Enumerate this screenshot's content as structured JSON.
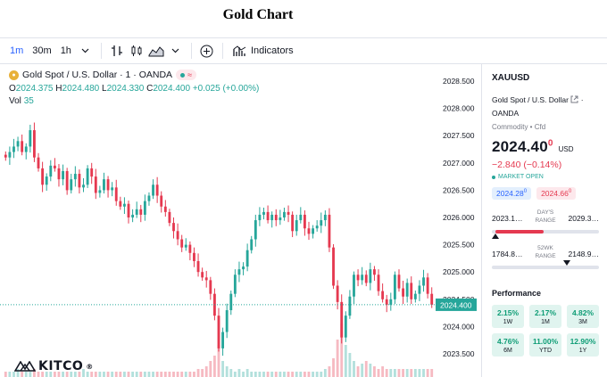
{
  "page": {
    "title": "Gold Chart"
  },
  "toolbar": {
    "intervals": [
      "1m",
      "30m",
      "1h"
    ],
    "active_interval": "1m",
    "indicators_label": "Indicators"
  },
  "legend": {
    "symbol": "Gold Spot / U.S. Dollar · 1 · OANDA",
    "open_label": "O",
    "open": "2024.375",
    "high_label": "H",
    "high": "2024.480",
    "low_label": "L",
    "low": "2024.330",
    "close_label": "C",
    "close": "2024.400",
    "change": "+0.025 (+0.00%)",
    "vol_label": "Vol",
    "vol": "35"
  },
  "brand": {
    "logo_text": "KITCO",
    "reg_mark": "®"
  },
  "chart_data": {
    "type": "candlestick",
    "title": "",
    "xlabel": "",
    "ylabel": "",
    "ylim": [
      2023.3,
      2028.7
    ],
    "y_ticks": [
      "2028.500",
      "2028.000",
      "2027.500",
      "2027.000",
      "2026.500",
      "2026.000",
      "2025.500",
      "2025.000",
      "2024.500",
      "2024.000",
      "2023.500"
    ],
    "last_price_label": "2024.400",
    "last_price": 2024.4,
    "colors": {
      "up": "#26a69a",
      "down": "#e53950",
      "price_line": "#26a69a"
    },
    "close": [
      2027.1,
      2027.2,
      2027.3,
      2027.4,
      2027.2,
      2027.3,
      2027.6,
      2027.1,
      2026.9,
      2026.6,
      2026.75,
      2026.95,
      2026.9,
      2026.7,
      2026.85,
      2026.5,
      2026.7,
      2026.8,
      2026.55,
      2026.6,
      2026.9,
      2026.75,
      2026.45,
      2026.5,
      2026.7,
      2026.5,
      2026.55,
      2026.3,
      2026.2,
      2026.25,
      2026.0,
      2026.05,
      2026.15,
      2026.05,
      2026.3,
      2026.4,
      2026.6,
      2026.4,
      2026.2,
      2026.1,
      2025.9,
      2025.75,
      2025.6,
      2025.45,
      2025.5,
      2025.35,
      2025.2,
      2025.0,
      2024.9,
      2024.85,
      2024.6,
      2024.2,
      2023.6,
      2023.9,
      2024.3,
      2024.6,
      2024.95,
      2025.05,
      2025.1,
      2025.4,
      2025.6,
      2025.95,
      2026.05,
      2026.1,
      2025.95,
      2026.05,
      2025.95,
      2026.0,
      2026.1,
      2026.05,
      2025.75,
      2025.95,
      2026.05,
      2025.8,
      2025.7,
      2025.8,
      2025.85,
      2025.95,
      2026.05,
      2025.45,
      2024.75,
      2024.45,
      2023.8,
      2024.2,
      2024.55,
      2024.95,
      2024.85,
      2024.95,
      2024.8,
      2025.05,
      2024.95,
      2024.65,
      2024.5,
      2024.4,
      2024.5,
      2024.95,
      2024.7,
      2024.55,
      2024.8,
      2024.5,
      2024.6,
      2024.75,
      2024.9,
      2024.6,
      2024.4
    ],
    "volume_note": "volume bars at bottom",
    "volume": [
      2,
      2,
      2,
      3,
      2,
      2,
      2,
      3,
      2,
      2,
      2,
      2,
      2,
      2,
      2,
      2,
      2,
      2,
      2,
      3,
      2,
      2,
      2,
      2,
      2,
      2,
      2,
      2,
      2,
      2,
      2,
      2,
      2,
      2,
      2,
      2,
      2,
      2,
      2,
      2,
      2,
      2,
      2,
      2,
      2,
      2,
      2,
      3,
      3,
      4,
      6,
      8,
      12,
      6,
      4,
      3,
      2,
      3,
      2,
      3,
      2,
      2,
      2,
      2,
      2,
      2,
      2,
      2,
      2,
      2,
      2,
      2,
      2,
      2,
      2,
      2,
      2,
      2,
      3,
      4,
      7,
      14,
      20,
      12,
      9,
      6,
      4,
      5,
      6,
      5,
      4,
      3,
      4,
      3,
      3,
      3,
      3,
      3,
      3,
      3,
      3,
      3,
      3,
      3,
      3
    ]
  },
  "side_panel": {
    "ticker": "XAUUSD",
    "name": "Gold Spot / U.S. Dollar",
    "broker": "OANDA",
    "category": "Commodity",
    "subtype": "Cfd",
    "price_main": "2024.40",
    "price_small": "0",
    "currency": "USD",
    "change": "−2.840 (−0.14%)",
    "market_status": "MARKET OPEN",
    "bid": "2024.28",
    "bid_sup": "0",
    "ask": "2024.66",
    "ask_sup": "0",
    "days_range_label_1": "DAY'S",
    "days_range_label_2": "RANGE",
    "days_low": "2023.1…",
    "days_high": "2029.3…",
    "days_range_position": 0.03,
    "wk52_label_1": "52WK",
    "wk52_label_2": "RANGE",
    "wk52_low": "1784.8…",
    "wk52_high": "2148.9…",
    "wk52_position": 0.7,
    "performance_title": "Performance",
    "performance": [
      {
        "value": "2.15%",
        "label": "1W"
      },
      {
        "value": "2.17%",
        "label": "1M"
      },
      {
        "value": "4.82%",
        "label": "3M"
      },
      {
        "value": "4.76%",
        "label": "6M"
      },
      {
        "value": "11.00%",
        "label": "YTD"
      },
      {
        "value": "12.90%",
        "label": "1Y"
      }
    ]
  }
}
